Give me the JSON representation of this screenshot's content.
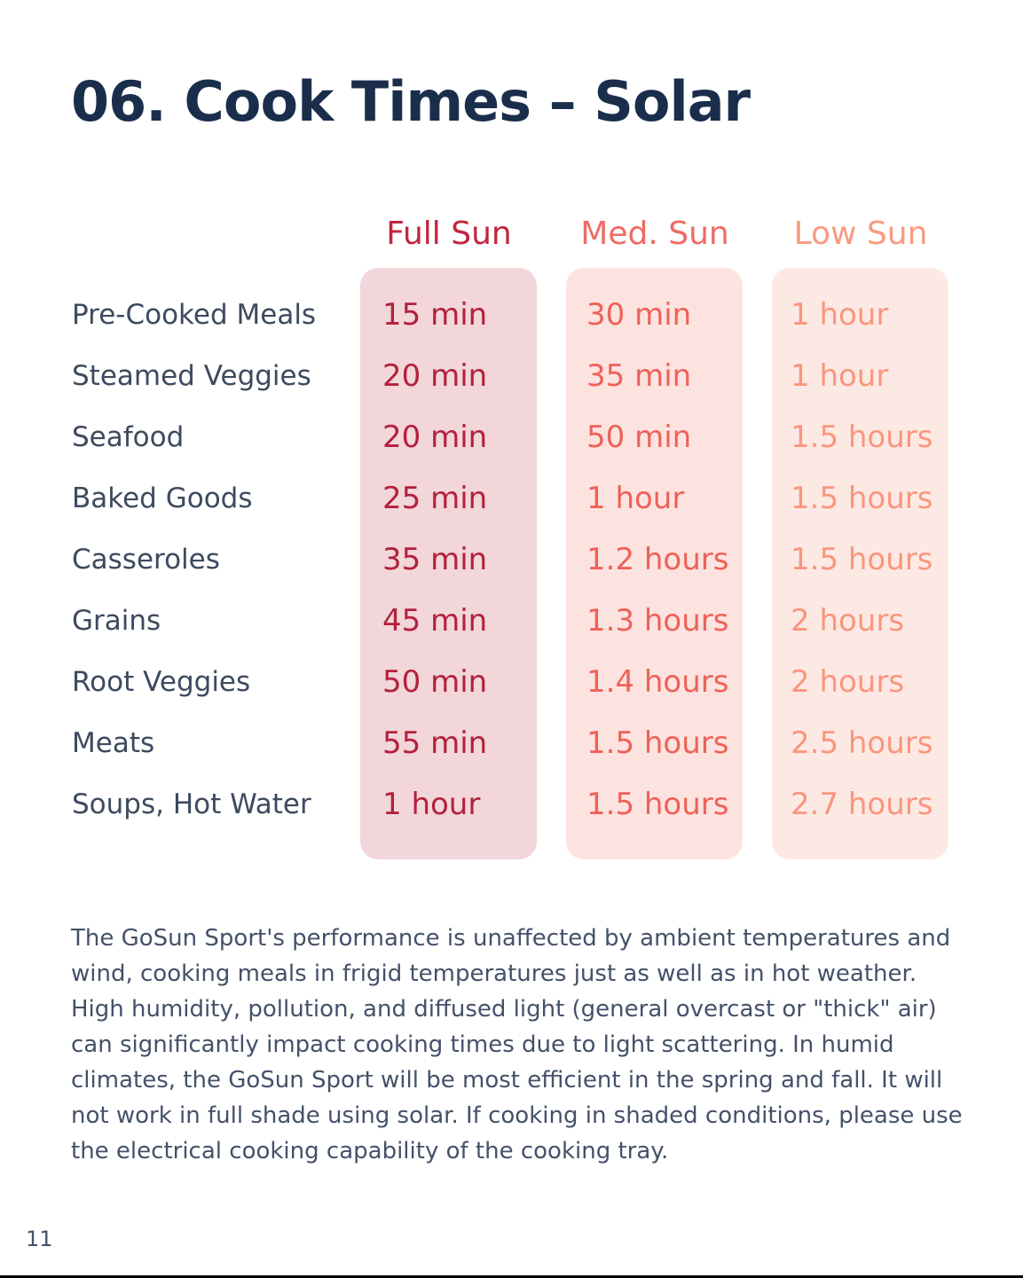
{
  "title": "06. Cook Times – Solar",
  "columns": {
    "full": "Full Sun",
    "med": "Med. Sun",
    "low": "Low Sun"
  },
  "rows": [
    {
      "food": "Pre-Cooked Meals",
      "full": "15 min",
      "med": "30 min",
      "low": "1 hour"
    },
    {
      "food": "Steamed Veggies",
      "full": "20 min",
      "med": "35 min",
      "low": "1 hour"
    },
    {
      "food": "Seafood",
      "full": "20 min",
      "med": "50 min",
      "low": "1.5 hours"
    },
    {
      "food": "Baked Goods",
      "full": "25 min",
      "med": "1 hour",
      "low": "1.5 hours"
    },
    {
      "food": "Casseroles",
      "full": "35 min",
      "med": "1.2 hours",
      "low": "1.5 hours"
    },
    {
      "food": "Grains",
      "full": "45 min",
      "med": "1.3 hours",
      "low": "2 hours"
    },
    {
      "food": "Root Veggies",
      "full": "50 min",
      "med": "1.4 hours",
      "low": "2 hours"
    },
    {
      "food": "Meats",
      "full": "55 min",
      "med": "1.5 hours",
      "low": "2.5 hours"
    },
    {
      "food": "Soups, Hot Water",
      "full": "1 hour",
      "med": "1.5 hours",
      "low": "2.7 hours"
    }
  ],
  "description": "The GoSun Sport's performance is unaffected by ambient temperatures and wind, cooking meals in frigid temperatures just as well as in hot weather. High humidity, pollution, and diffused light (general overcast or \"thick\" air) can significantly impact cooking times due to light scattering. In humid climates, the GoSun Sport will be most efficient in the spring and fall. It will not work in full shade using solar. If cooking in shaded conditions, please use the electrical cooking capability of the cooking tray.",
  "page_number": "11",
  "colors": {
    "title": "#1a2e4c",
    "full_sun": "#b3213b",
    "med_sun": "#ee6158",
    "low_sun": "#f9967d"
  }
}
